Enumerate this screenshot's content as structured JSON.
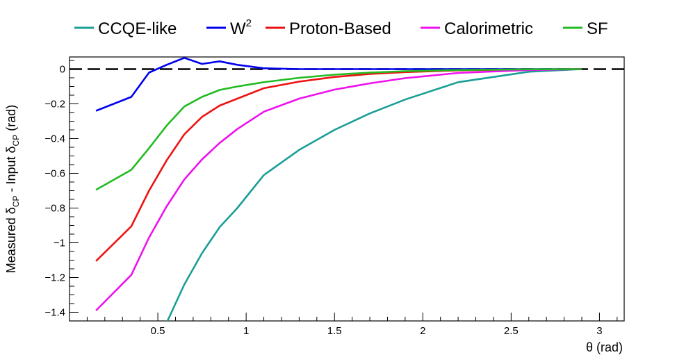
{
  "chart_data": {
    "type": "line",
    "title": "",
    "xlabel": "θ (rad)",
    "ylabel_parts": {
      "measured": "Measured δ",
      "sub1": "CP",
      "minus_input": " - Input δ",
      "sub2": "CP",
      "unit": " (rad)"
    },
    "xlim": [
      0.0,
      3.14
    ],
    "ylim": [
      -1.45,
      0.07
    ],
    "x_ticks": [
      0.5,
      1,
      1.5,
      2,
      2.5,
      3
    ],
    "x_tick_labels": [
      "0.5",
      "1",
      "1.5",
      "2",
      "2.5",
      "3"
    ],
    "y_ticks": [
      0,
      -0.2,
      -0.4,
      -0.6,
      -0.8,
      -1,
      -1.2,
      -1.4
    ],
    "y_tick_labels": [
      "0",
      "−0.2",
      "−0.4",
      "−0.6",
      "−0.8",
      "−1",
      "−1.2",
      "−1.4"
    ],
    "reference_line": {
      "y": 0,
      "style": "dashed",
      "color": "#000000"
    },
    "legend_position": "top",
    "series": [
      {
        "name": "CCQE-like",
        "color": "#1a9e96",
        "x": [
          0.55,
          0.65,
          0.75,
          0.85,
          0.95,
          1.1,
          1.3,
          1.5,
          1.7,
          1.9,
          2.2,
          2.6,
          2.9
        ],
        "y": [
          -1.46,
          -1.24,
          -1.06,
          -0.91,
          -0.8,
          -0.61,
          -0.465,
          -0.35,
          -0.255,
          -0.175,
          -0.075,
          -0.015,
          0.0
        ]
      },
      {
        "name": "W",
        "name_sup": "2",
        "color": "#0000ee",
        "x": [
          0.15,
          0.35,
          0.45,
          0.55,
          0.65,
          0.75,
          0.85,
          0.95,
          1.1,
          1.3,
          1.5,
          2.0,
          2.5,
          2.9
        ],
        "y": [
          -0.24,
          -0.16,
          -0.02,
          0.025,
          0.065,
          0.03,
          0.045,
          0.025,
          0.005,
          0.0,
          0.0,
          0.0,
          0.0,
          0.0
        ]
      },
      {
        "name": "Proton-Based",
        "color": "#ee1111",
        "x": [
          0.15,
          0.35,
          0.45,
          0.55,
          0.65,
          0.75,
          0.85,
          0.95,
          1.1,
          1.3,
          1.5,
          1.7,
          1.9,
          2.2,
          2.6,
          2.9
        ],
        "y": [
          -1.105,
          -0.905,
          -0.7,
          -0.525,
          -0.375,
          -0.275,
          -0.21,
          -0.17,
          -0.11,
          -0.072,
          -0.045,
          -0.028,
          -0.017,
          -0.007,
          -0.002,
          0.0
        ]
      },
      {
        "name": "Calorimetric",
        "color": "#ee11ee",
        "x": [
          0.15,
          0.35,
          0.45,
          0.55,
          0.65,
          0.75,
          0.85,
          0.95,
          1.1,
          1.3,
          1.5,
          1.7,
          1.9,
          2.2,
          2.6,
          2.9
        ],
        "y": [
          -1.39,
          -1.185,
          -0.97,
          -0.79,
          -0.635,
          -0.52,
          -0.425,
          -0.345,
          -0.245,
          -0.17,
          -0.118,
          -0.082,
          -0.052,
          -0.022,
          -0.005,
          0.0
        ]
      },
      {
        "name": "SF",
        "color": "#22bb22",
        "x": [
          0.15,
          0.35,
          0.45,
          0.55,
          0.65,
          0.75,
          0.85,
          0.95,
          1.1,
          1.3,
          1.5,
          1.7,
          1.9,
          2.2,
          2.6,
          2.9
        ],
        "y": [
          -0.695,
          -0.58,
          -0.455,
          -0.325,
          -0.215,
          -0.16,
          -0.12,
          -0.1,
          -0.075,
          -0.05,
          -0.032,
          -0.02,
          -0.012,
          -0.005,
          -0.001,
          0.0
        ]
      }
    ]
  }
}
